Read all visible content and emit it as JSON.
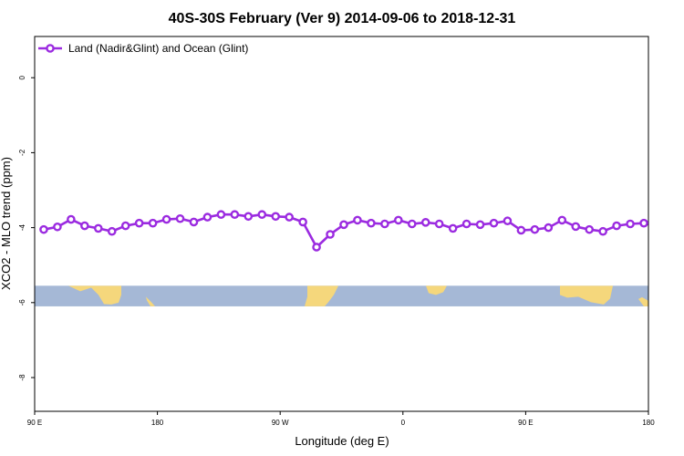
{
  "chart_data": {
    "type": "line",
    "title": "40S-30S February (Ver 9)   2014-09-06 to 2018-12-31",
    "xlabel": "Longitude (deg E)",
    "ylabel": "XCO2 - MLO trend (ppm)",
    "xlim": [
      -90,
      180
    ],
    "ylim": [
      -8.9,
      1.1
    ],
    "x_ticks": [
      {
        "value": -90,
        "label": "90 E"
      },
      {
        "value": -36,
        "label": "180"
      },
      {
        "value": 18,
        "label": "90 W"
      },
      {
        "value": 72,
        "label": "0"
      },
      {
        "value": 126,
        "label": "90 E"
      },
      {
        "value": 180,
        "label": "180"
      }
    ],
    "y_ticks": [
      {
        "value": 0,
        "label": "0"
      },
      {
        "value": -2,
        "label": "-2"
      },
      {
        "value": -4,
        "label": "-4"
      },
      {
        "value": -6,
        "label": "-6"
      },
      {
        "value": -8,
        "label": "-8"
      }
    ],
    "legend": {
      "placement": "top-left"
    },
    "series": [
      {
        "name": "Land (Nadir&Glint) and Ocean (Glint)",
        "color": "#9b2be0",
        "x": [
          -86,
          -80,
          -74,
          -68,
          -62,
          -56,
          -50,
          -44,
          -38,
          -32,
          -26,
          -20,
          -14,
          -8,
          -2,
          4,
          10,
          16,
          22,
          28,
          34,
          40,
          46,
          52,
          58,
          64,
          70,
          76,
          82,
          88,
          94,
          100,
          106,
          112,
          118,
          124,
          130,
          136,
          142,
          148,
          154,
          160,
          166,
          172,
          178
        ],
        "y": [
          -4.05,
          -3.98,
          -3.78,
          -3.95,
          -4.02,
          -4.1,
          -3.95,
          -3.88,
          -3.88,
          -3.78,
          -3.76,
          -3.85,
          -3.72,
          -3.65,
          -3.65,
          -3.7,
          -3.65,
          -3.7,
          -3.72,
          -3.85,
          -4.52,
          -4.18,
          -3.92,
          -3.8,
          -3.88,
          -3.9,
          -3.8,
          -3.9,
          -3.86,
          -3.9,
          -4.02,
          -3.9,
          -3.92,
          -3.88,
          -3.82,
          -4.07,
          -4.05,
          -4.0,
          -3.8,
          -3.97,
          -4.05,
          -4.1,
          -3.95,
          -3.9,
          -3.88
        ]
      }
    ],
    "map_band": {
      "y_range": [
        -6.1,
        -5.55
      ],
      "ocean_color": "#a5b8d6",
      "land_color": "#f5d77c"
    }
  }
}
